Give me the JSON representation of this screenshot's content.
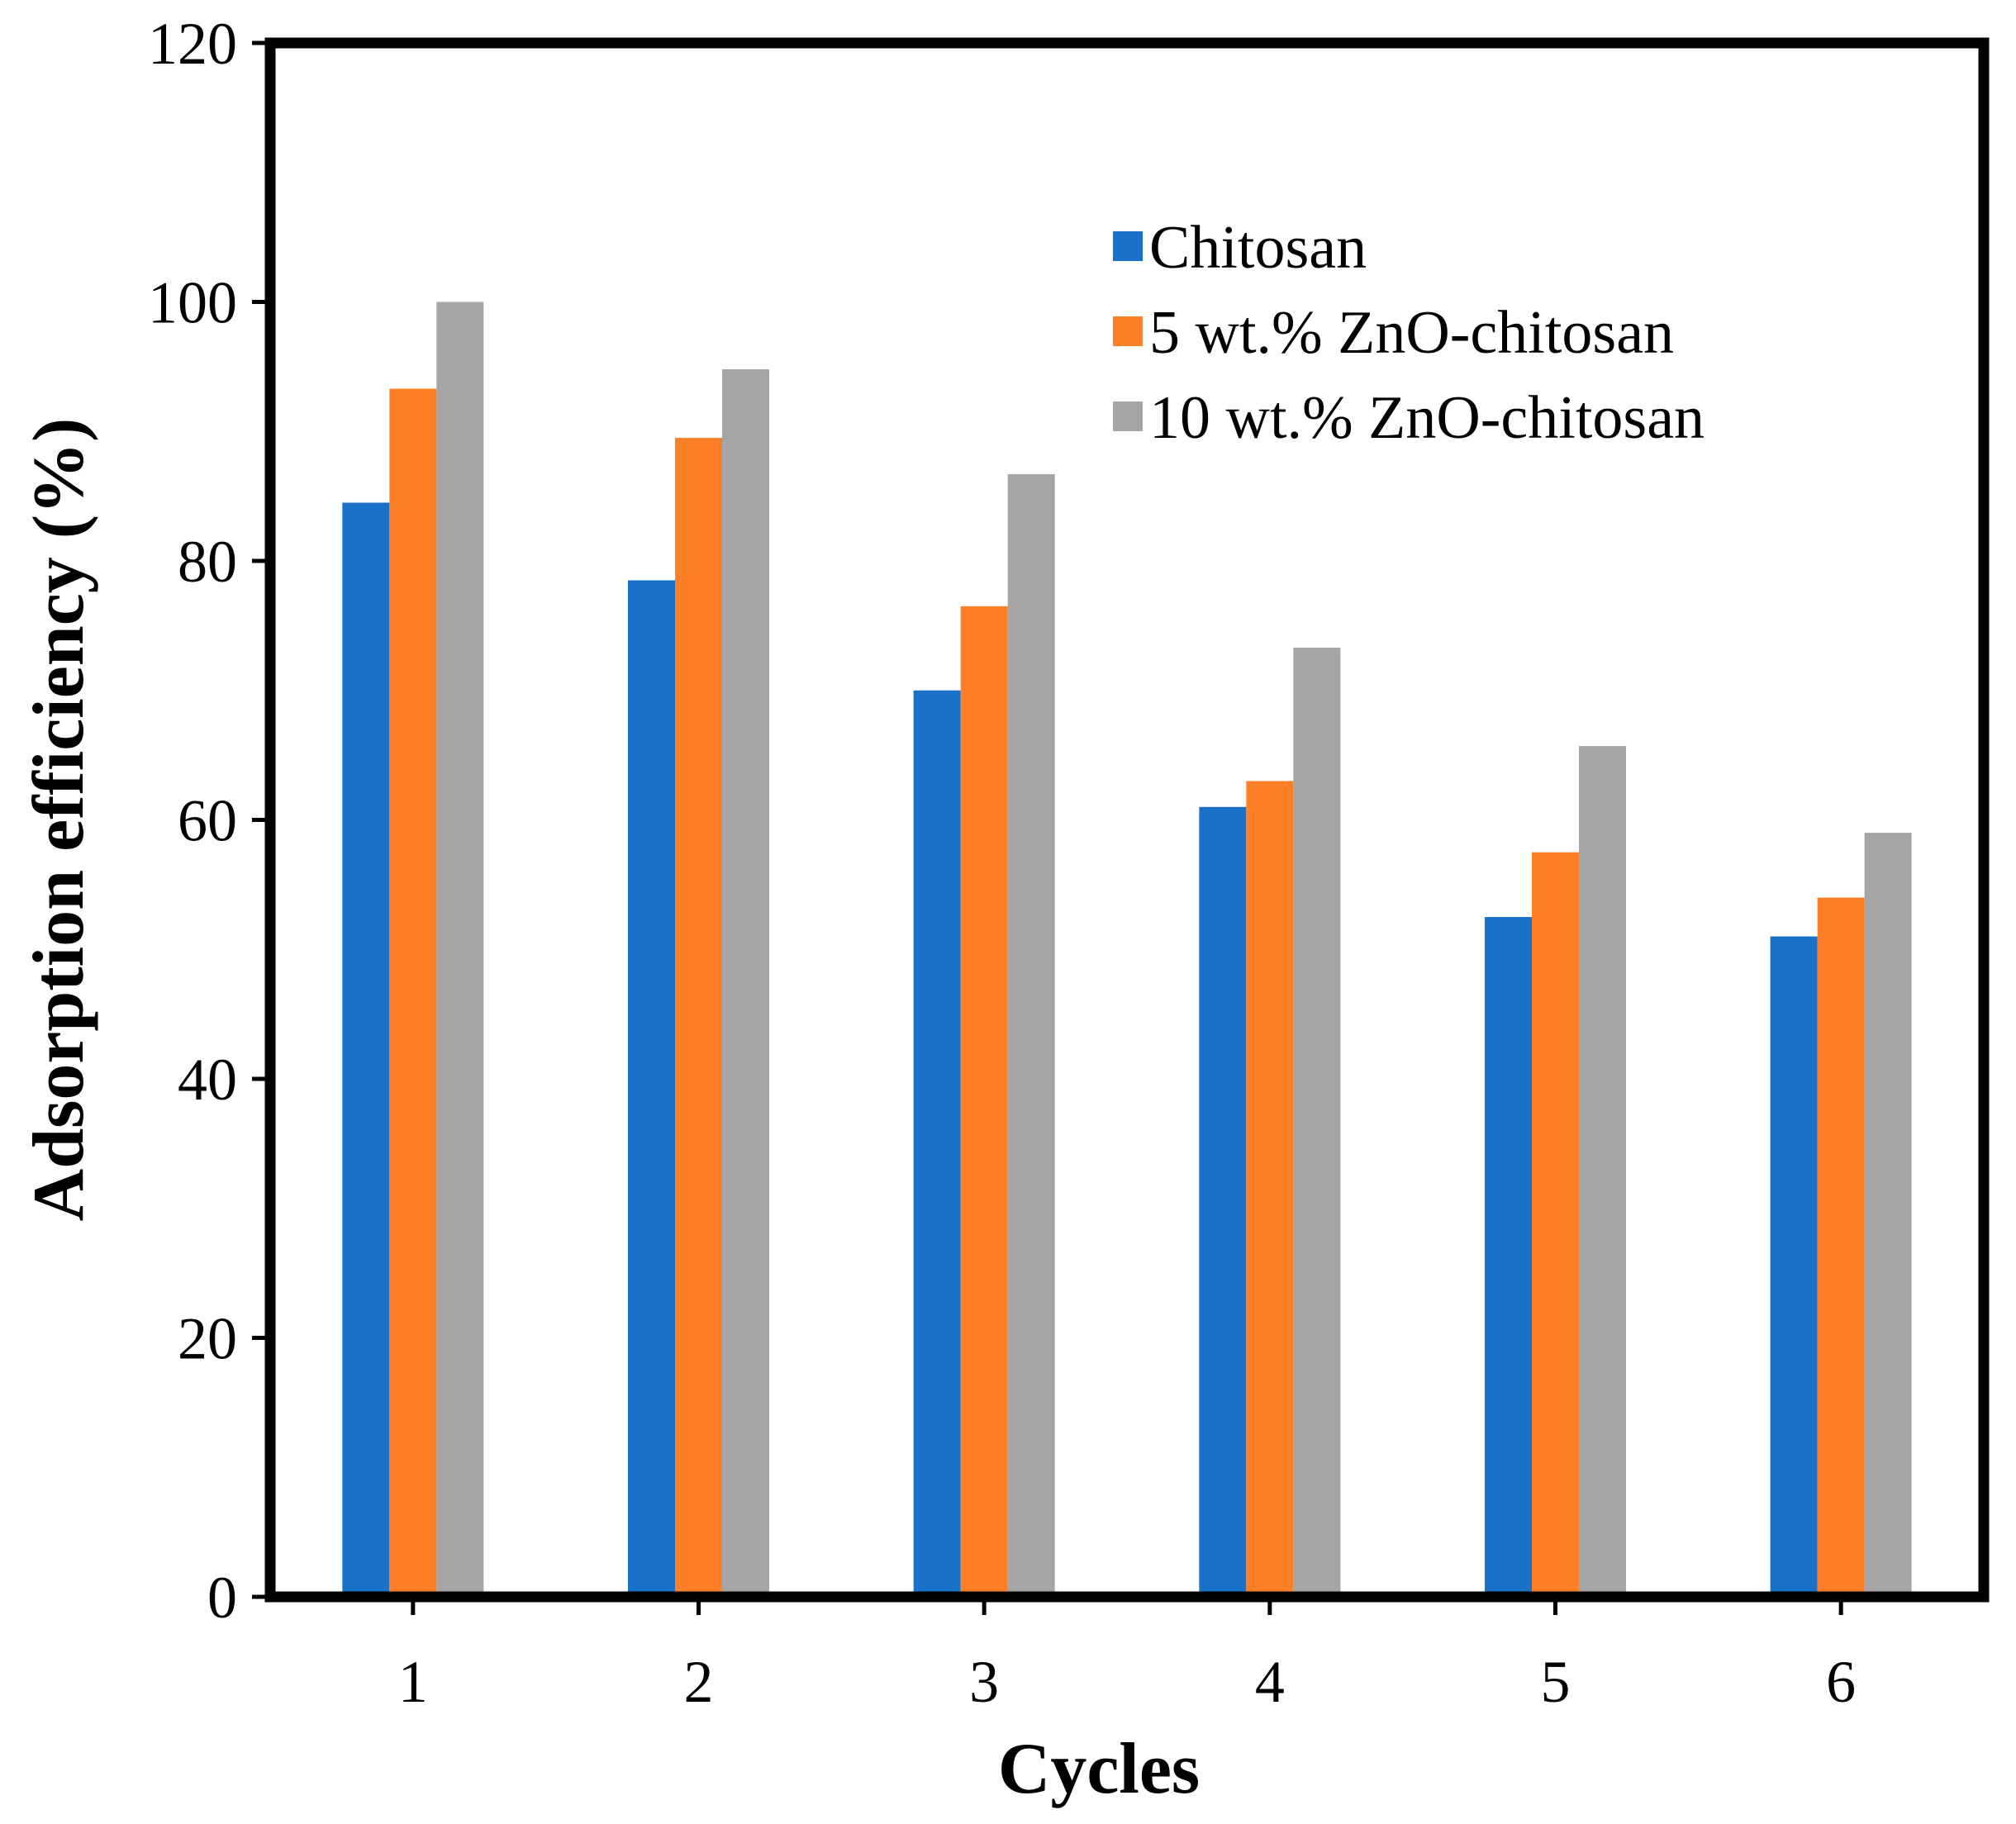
{
  "chart_data": {
    "type": "bar",
    "title": "",
    "xlabel": "Cycles",
    "ylabel": "Adsorption efficiency (%)",
    "ylim": [
      0,
      120
    ],
    "yticks": [
      "0",
      "20",
      "40",
      "60",
      "80",
      "100",
      "120"
    ],
    "categories": [
      "1",
      "2",
      "3",
      "4",
      "5",
      "6"
    ],
    "grid": false,
    "legend_position": "top-right",
    "series": [
      {
        "name": "Chitosan",
        "color": "#1a72c8",
        "values": [
          84.5,
          78.5,
          70,
          61,
          52.5,
          51
        ]
      },
      {
        "name": "5 wt.% ZnO-chitosan",
        "color": "#fd7f28",
        "values": [
          93.3,
          89.5,
          76.5,
          63,
          57.5,
          54
        ]
      },
      {
        "name": "10 wt.% ZnO-chitosan",
        "color": "#a5a5a5",
        "values": [
          100,
          94.8,
          86.7,
          73.3,
          65.7,
          59
        ]
      }
    ]
  }
}
